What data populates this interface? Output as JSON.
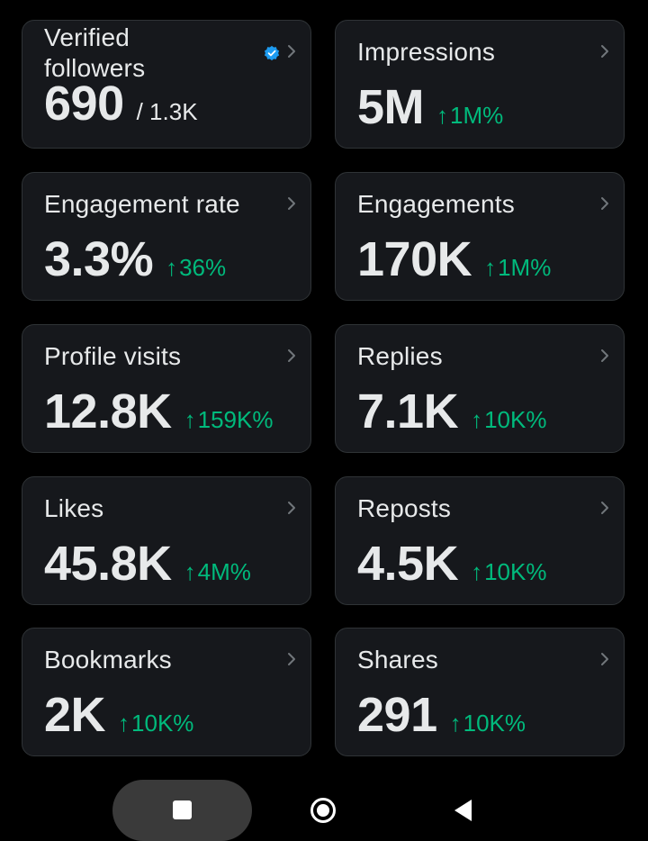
{
  "colors": {
    "background": "#000000",
    "card_bg": "#16181c",
    "card_border": "#2f3336",
    "text": "#e7e9ea",
    "positive": "#00ba7c",
    "verified_badge": "#1d9bf0"
  },
  "cards": [
    {
      "label": "Verified followers",
      "value": "690",
      "sub": "/ 1.3K",
      "icon": "verified-badge-icon"
    },
    {
      "label": "Impressions",
      "value": "5M",
      "delta": "1M%"
    },
    {
      "label": "Engagement rate",
      "value": "3.3%",
      "delta": "36%"
    },
    {
      "label": "Engagements",
      "value": "170K",
      "delta": "1M%"
    },
    {
      "label": "Profile visits",
      "value": "12.8K",
      "delta": "159K%"
    },
    {
      "label": "Replies",
      "value": "7.1K",
      "delta": "10K%"
    },
    {
      "label": "Likes",
      "value": "45.8K",
      "delta": "4M%"
    },
    {
      "label": "Reposts",
      "value": "4.5K",
      "delta": "10K%"
    },
    {
      "label": "Bookmarks",
      "value": "2K",
      "delta": "10K%"
    },
    {
      "label": "Shares",
      "value": "291",
      "delta": "10K%"
    }
  ],
  "arrow_glyph": "↑",
  "navbar": {
    "recents_icon": "square-icon",
    "home_icon": "circle-home-icon",
    "back_icon": "triangle-back-icon"
  }
}
